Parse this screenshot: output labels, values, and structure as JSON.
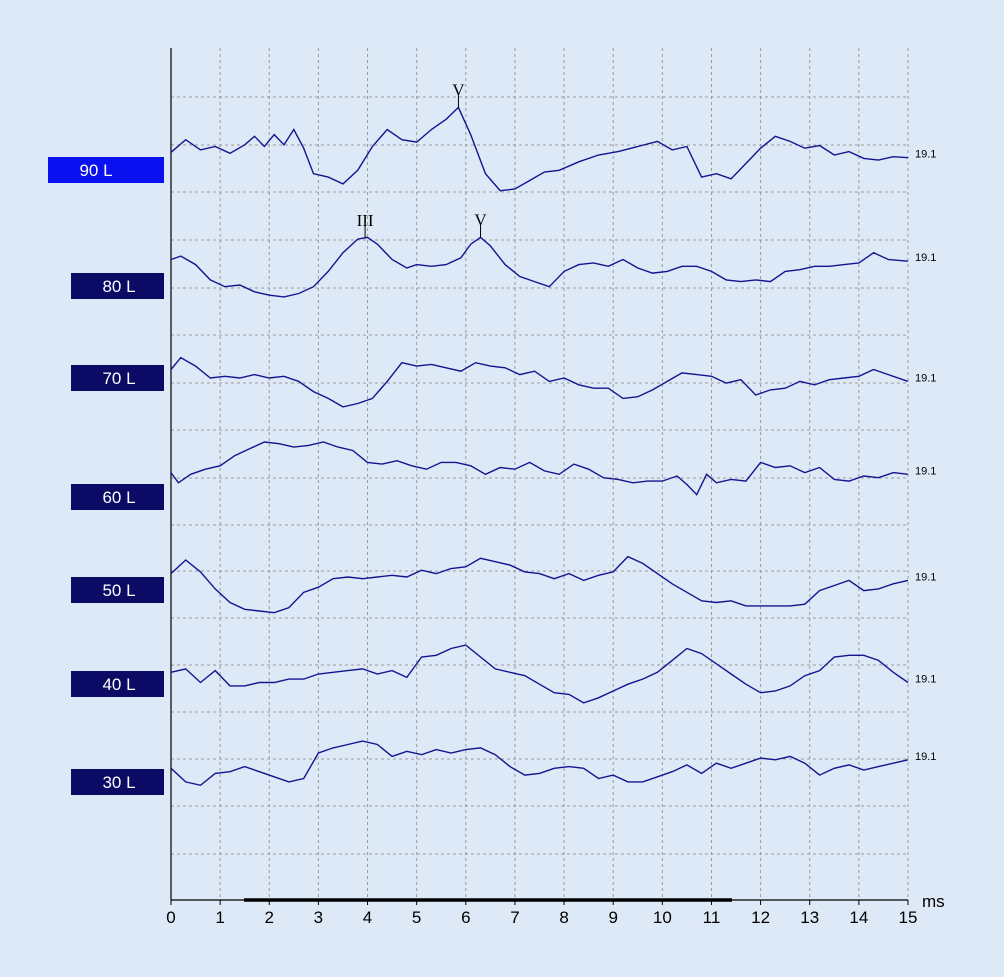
{
  "chart_data": {
    "type": "line",
    "xlabel": "ms",
    "xlim": [
      0,
      15
    ],
    "xticks": [
      "0",
      "1",
      "2",
      "3",
      "4",
      "5",
      "6",
      "7",
      "8",
      "9",
      "10",
      "11",
      "12",
      "13",
      "14",
      "15"
    ],
    "colors": {
      "background": "#dde9f6",
      "trace": "#141490",
      "label_box": "#0b0b66",
      "label_selected": "#0a10f0"
    },
    "grid": true,
    "series": [
      {
        "name": "90 L",
        "gain": "19.1",
        "selected": true,
        "x": [
          0,
          0.3,
          0.6,
          0.9,
          1.2,
          1.5,
          1.7,
          1.9,
          2.1,
          2.3,
          2.5,
          2.7,
          2.9,
          3.2,
          3.5,
          3.8,
          4.1,
          4.4,
          4.7,
          5.0,
          5.3,
          5.6,
          5.85,
          6.1,
          6.4,
          6.7,
          7.0,
          7.3,
          7.6,
          7.9,
          8.3,
          8.7,
          9.1,
          9.5,
          9.9,
          10.2,
          10.5,
          10.8,
          11.1,
          11.4,
          11.7,
          12.0,
          12.3,
          12.6,
          12.9,
          13.2,
          13.5,
          13.8,
          14.1,
          14.4,
          14.7,
          15.0
        ],
        "y": [
          0.08,
          0.45,
          0.15,
          0.25,
          0.05,
          0.3,
          0.55,
          0.25,
          0.6,
          0.3,
          0.75,
          0.2,
          -0.55,
          -0.65,
          -0.85,
          -0.45,
          0.25,
          0.75,
          0.45,
          0.38,
          0.75,
          1.05,
          1.4,
          0.6,
          -0.55,
          -1.05,
          -1.0,
          -0.75,
          -0.5,
          -0.45,
          -0.2,
          0,
          0.1,
          0.25,
          0.4,
          0.15,
          0.25,
          -0.65,
          -0.55,
          -0.7,
          -0.25,
          0.2,
          0.55,
          0.4,
          0.2,
          0.28,
          0,
          0.1,
          -0.1,
          -0.15,
          -0.05,
          -0.08
        ],
        "peaks": [
          {
            "label": "V",
            "x": 5.85
          }
        ]
      },
      {
        "name": "80 L",
        "gain": "19.1",
        "selected": false,
        "x": [
          0,
          0.2,
          0.5,
          0.8,
          1.1,
          1.4,
          1.7,
          2.0,
          2.3,
          2.6,
          2.9,
          3.2,
          3.5,
          3.8,
          4.0,
          4.2,
          4.5,
          4.8,
          5.0,
          5.3,
          5.6,
          5.9,
          6.1,
          6.3,
          6.5,
          6.8,
          7.1,
          7.4,
          7.7,
          8.0,
          8.3,
          8.6,
          8.9,
          9.2,
          9.5,
          9.8,
          10.1,
          10.4,
          10.7,
          11.0,
          11.3,
          11.6,
          11.9,
          12.2,
          12.5,
          12.8,
          13.1,
          13.4,
          13.7,
          14.0,
          14.3,
          14.6,
          15.0
        ],
        "y": [
          0.25,
          0.35,
          0.1,
          -0.35,
          -0.55,
          -0.5,
          -0.7,
          -0.8,
          -0.85,
          -0.75,
          -0.55,
          -0.1,
          0.45,
          0.85,
          0.9,
          0.7,
          0.25,
          0,
          0.1,
          0.05,
          0.1,
          0.3,
          0.7,
          0.9,
          0.65,
          0.1,
          -0.25,
          -0.4,
          -0.55,
          -0.1,
          0.1,
          0.15,
          0.05,
          0.25,
          0,
          -0.15,
          -0.1,
          0.05,
          0.05,
          -0.1,
          -0.35,
          -0.4,
          -0.35,
          -0.4,
          -0.1,
          -0.05,
          0.05,
          0.05,
          0.1,
          0.15,
          0.45,
          0.25,
          0.2
        ],
        "peaks": [
          {
            "label": "III",
            "x": 3.95
          },
          {
            "label": "V",
            "x": 6.3
          }
        ]
      },
      {
        "name": "70 L",
        "gain": "19.1",
        "selected": false,
        "x": [
          0,
          0.2,
          0.5,
          0.8,
          1.1,
          1.4,
          1.7,
          2.0,
          2.3,
          2.6,
          2.9,
          3.2,
          3.5,
          3.8,
          4.1,
          4.4,
          4.7,
          5.0,
          5.3,
          5.6,
          5.9,
          6.2,
          6.5,
          6.8,
          7.1,
          7.4,
          7.7,
          8.0,
          8.3,
          8.6,
          8.9,
          9.2,
          9.5,
          9.8,
          10.1,
          10.4,
          10.7,
          11.0,
          11.3,
          11.6,
          11.9,
          12.2,
          12.5,
          12.8,
          13.1,
          13.4,
          13.7,
          14.0,
          14.3,
          14.6,
          15.0
        ],
        "y": [
          0.25,
          0.6,
          0.35,
          0,
          0.05,
          0,
          0.1,
          0,
          0.05,
          -0.1,
          -0.4,
          -0.6,
          -0.85,
          -0.75,
          -0.6,
          -0.1,
          0.45,
          0.35,
          0.4,
          0.3,
          0.2,
          0.45,
          0.35,
          0.3,
          0.1,
          0.2,
          -0.1,
          0,
          -0.2,
          -0.3,
          -0.3,
          -0.6,
          -0.55,
          -0.35,
          -0.1,
          0.15,
          0.1,
          0.05,
          -0.15,
          -0.05,
          -0.5,
          -0.35,
          -0.3,
          -0.1,
          -0.2,
          -0.05,
          0,
          0.05,
          0.25,
          0.1,
          -0.1
        ],
        "peaks": []
      },
      {
        "name": "60 L",
        "gain": "19.1",
        "selected": false,
        "x": [
          0,
          0.15,
          0.4,
          0.7,
          1.0,
          1.3,
          1.6,
          1.9,
          2.2,
          2.5,
          2.8,
          3.1,
          3.4,
          3.7,
          4.0,
          4.3,
          4.6,
          4.9,
          5.2,
          5.5,
          5.8,
          6.1,
          6.4,
          6.7,
          7.0,
          7.3,
          7.6,
          7.9,
          8.2,
          8.5,
          8.8,
          9.1,
          9.4,
          9.7,
          10.0,
          10.3,
          10.5,
          10.7,
          10.9,
          11.1,
          11.4,
          11.7,
          12.0,
          12.3,
          12.6,
          12.9,
          13.2,
          13.5,
          13.8,
          14.1,
          14.4,
          14.7,
          15.0
        ],
        "y": [
          0.1,
          -0.2,
          0.05,
          0.2,
          0.3,
          0.6,
          0.8,
          1.0,
          0.95,
          0.85,
          0.9,
          1.0,
          0.85,
          0.75,
          0.4,
          0.35,
          0.45,
          0.3,
          0.2,
          0.4,
          0.4,
          0.3,
          0.05,
          0.25,
          0.2,
          0.4,
          0.15,
          0.05,
          0.35,
          0.2,
          -0.05,
          -0.1,
          -0.2,
          -0.15,
          -0.15,
          0,
          -0.25,
          -0.55,
          0.05,
          -0.2,
          -0.1,
          -0.15,
          0.4,
          0.25,
          0.3,
          0.1,
          0.25,
          -0.1,
          -0.15,
          0,
          -0.05,
          0.1,
          0.05
        ],
        "peaks": []
      },
      {
        "name": "50 L",
        "gain": "19.1",
        "selected": false,
        "x": [
          0,
          0.3,
          0.6,
          0.9,
          1.2,
          1.5,
          1.8,
          2.1,
          2.4,
          2.7,
          3.0,
          3.3,
          3.6,
          3.9,
          4.2,
          4.5,
          4.8,
          5.1,
          5.4,
          5.7,
          6.0,
          6.3,
          6.6,
          6.9,
          7.2,
          7.5,
          7.8,
          8.1,
          8.4,
          8.7,
          9.0,
          9.3,
          9.6,
          9.9,
          10.2,
          10.5,
          10.8,
          11.1,
          11.4,
          11.7,
          12.0,
          12.3,
          12.6,
          12.9,
          13.2,
          13.5,
          13.8,
          14.1,
          14.4,
          14.7,
          15.0
        ],
        "y": [
          0.1,
          0.5,
          0.15,
          -0.35,
          -0.75,
          -0.95,
          -1.0,
          -1.05,
          -0.9,
          -0.45,
          -0.3,
          -0.05,
          0,
          -0.05,
          0,
          0.05,
          0,
          0.2,
          0.1,
          0.25,
          0.3,
          0.55,
          0.45,
          0.35,
          0.15,
          0.1,
          -0.05,
          0.1,
          -0.1,
          0.05,
          0.15,
          0.6,
          0.4,
          0.1,
          -0.2,
          -0.45,
          -0.7,
          -0.75,
          -0.7,
          -0.85,
          -0.85,
          -0.85,
          -0.85,
          -0.8,
          -0.4,
          -0.25,
          -0.1,
          -0.4,
          -0.35,
          -0.2,
          -0.1
        ],
        "peaks": []
      },
      {
        "name": "40 L",
        "gain": "19.1",
        "selected": false,
        "x": [
          0,
          0.3,
          0.6,
          0.9,
          1.2,
          1.5,
          1.8,
          2.1,
          2.4,
          2.7,
          3.0,
          3.3,
          3.6,
          3.9,
          4.2,
          4.5,
          4.8,
          5.1,
          5.4,
          5.7,
          6.0,
          6.3,
          6.6,
          6.9,
          7.2,
          7.5,
          7.8,
          8.1,
          8.4,
          8.7,
          9.0,
          9.3,
          9.6,
          9.9,
          10.2,
          10.5,
          10.8,
          11.1,
          11.4,
          11.7,
          12.0,
          12.3,
          12.6,
          12.9,
          13.2,
          13.5,
          13.8,
          14.1,
          14.4,
          14.7,
          15.0
        ],
        "y": [
          0.05,
          0.15,
          -0.25,
          0.1,
          -0.35,
          -0.35,
          -0.25,
          -0.25,
          -0.15,
          -0.15,
          0,
          0.05,
          0.1,
          0.15,
          0,
          0.1,
          -0.1,
          0.5,
          0.55,
          0.75,
          0.85,
          0.5,
          0.15,
          0.05,
          -0.05,
          -0.3,
          -0.55,
          -0.6,
          -0.85,
          -0.7,
          -0.5,
          -0.3,
          -0.15,
          0.05,
          0.4,
          0.75,
          0.6,
          0.3,
          0,
          -0.3,
          -0.55,
          -0.5,
          -0.35,
          -0.05,
          0.1,
          0.5,
          0.55,
          0.55,
          0.4,
          0.05,
          -0.25
        ],
        "peaks": []
      },
      {
        "name": "30 L",
        "gain": "19.1",
        "selected": false,
        "x": [
          0,
          0.3,
          0.6,
          0.9,
          1.2,
          1.5,
          1.8,
          2.1,
          2.4,
          2.7,
          3.0,
          3.3,
          3.6,
          3.9,
          4.2,
          4.5,
          4.8,
          5.1,
          5.4,
          5.7,
          6.0,
          6.3,
          6.6,
          6.9,
          7.2,
          7.5,
          7.8,
          8.1,
          8.4,
          8.7,
          9.0,
          9.3,
          9.6,
          9.9,
          10.2,
          10.5,
          10.8,
          11.1,
          11.4,
          11.7,
          12.0,
          12.3,
          12.6,
          12.9,
          13.2,
          13.5,
          13.8,
          14.1,
          14.4,
          14.7,
          15.0
        ],
        "y": [
          0.05,
          -0.35,
          -0.45,
          -0.1,
          -0.05,
          0.1,
          -0.05,
          -0.2,
          -0.35,
          -0.25,
          0.5,
          0.65,
          0.75,
          0.85,
          0.75,
          0.4,
          0.55,
          0.45,
          0.6,
          0.5,
          0.6,
          0.65,
          0.45,
          0.1,
          -0.15,
          -0.1,
          0.05,
          0.1,
          0.05,
          -0.25,
          -0.15,
          -0.35,
          -0.35,
          -0.2,
          -0.05,
          0.15,
          -0.1,
          0.2,
          0.05,
          0.2,
          0.35,
          0.3,
          0.4,
          0.2,
          -0.15,
          0.05,
          0.15,
          0.0,
          0.1,
          0.2,
          0.3
        ],
        "peaks": []
      }
    ]
  }
}
